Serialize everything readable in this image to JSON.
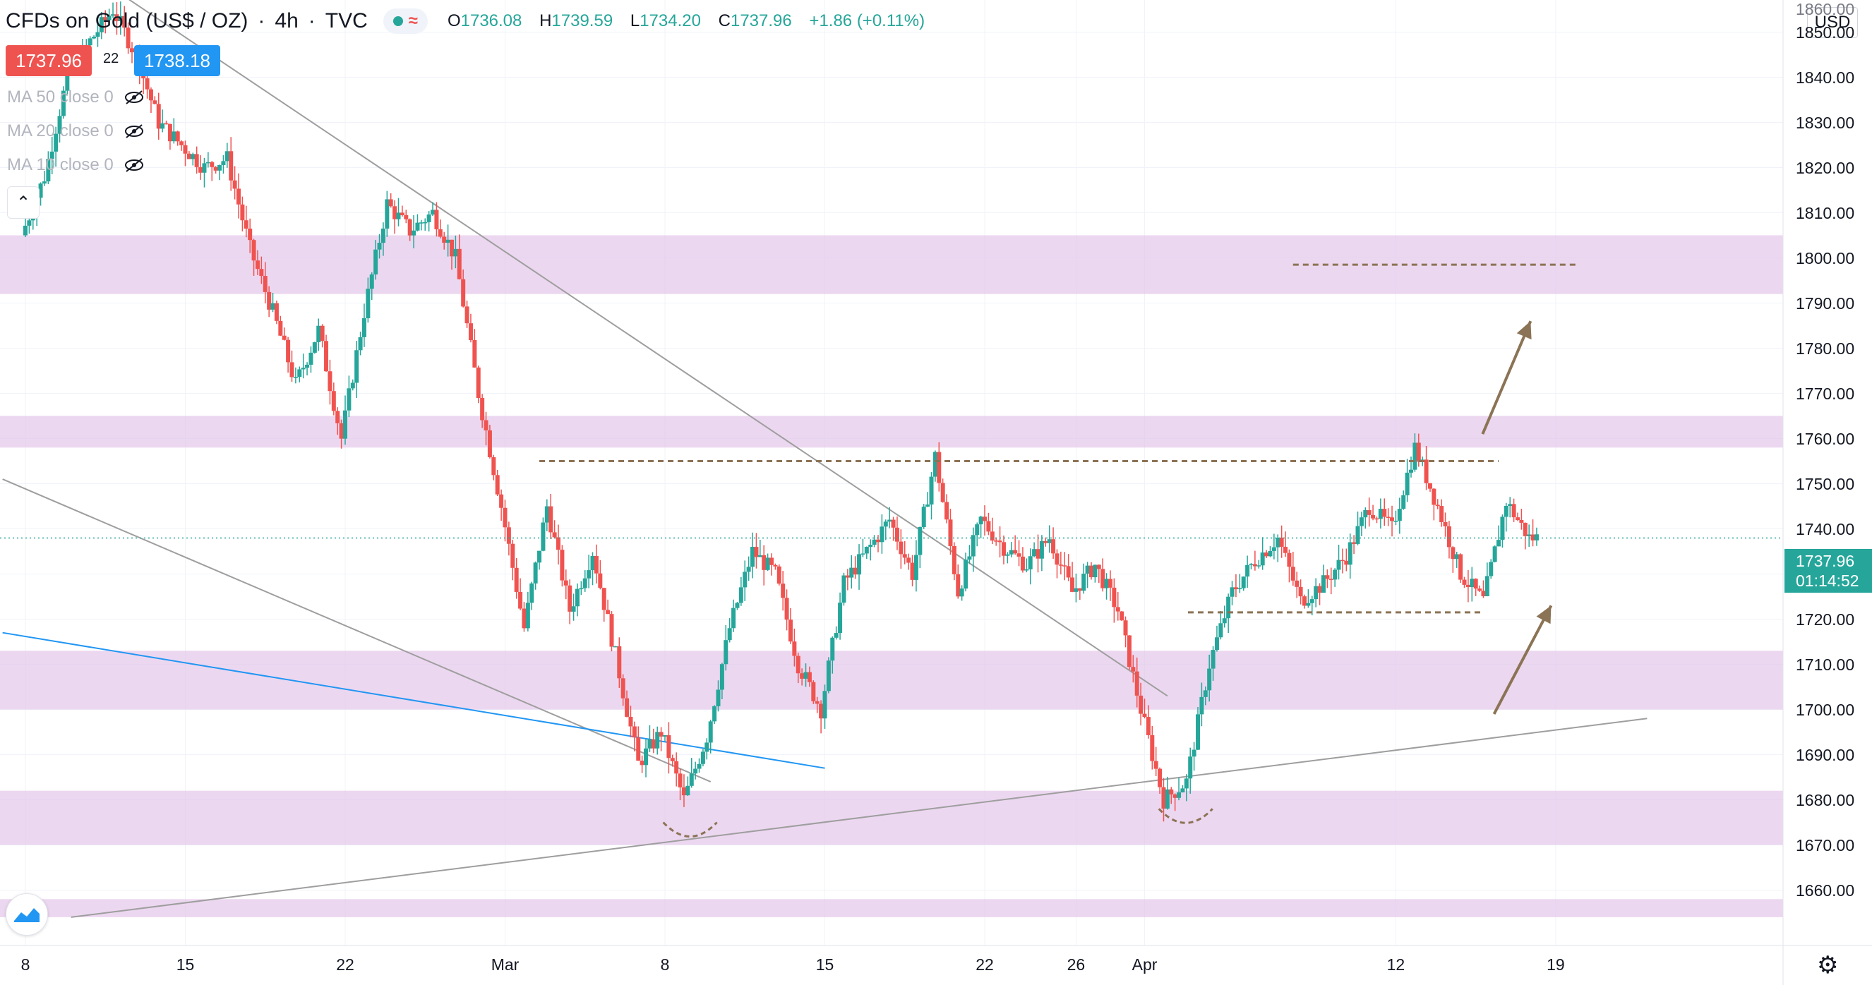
{
  "header": {
    "title": "CFDs on Gold (US$ / OZ)",
    "interval": "4h",
    "source": "TVC",
    "ohlc": {
      "o_label": "O",
      "o": "1736.08",
      "h_label": "H",
      "h": "1739.59",
      "l_label": "L",
      "l": "1734.20",
      "c_label": "C",
      "c": "1737.96",
      "change": "+1.86 (+0.11%)"
    }
  },
  "quote": {
    "sell": "1737.96",
    "spread": "22",
    "buy": "1738.18"
  },
  "indicators": [
    {
      "label": "MA 50 close 0"
    },
    {
      "label": "MA 20 close 0"
    },
    {
      "label": "MA 10 close 0"
    }
  ],
  "price_scale": {
    "currency": "USD",
    "last_price": "1737.96",
    "countdown": "01:14:52",
    "top_label": "1860.00"
  },
  "colors": {
    "up": "#26a69a",
    "down": "#ef5350",
    "zone": "#e1bee7",
    "trend_blue": "#2196f3",
    "trend_gray": "#9e9e9e",
    "annotation": "#8b7355"
  },
  "icons": [
    "chevron-up-icon",
    "eye-off-icon",
    "tradingview-logo-icon",
    "settings-gear-icon"
  ],
  "chart_data": {
    "type": "candlestick",
    "title": "CFDs on Gold (US$ / OZ)",
    "xlabel": "",
    "ylabel": "",
    "ylim": [
      1654,
      1862
    ],
    "y_ticks": [
      "1850.00",
      "1840.00",
      "1830.00",
      "1820.00",
      "1810.00",
      "1800.00",
      "1790.00",
      "1780.00",
      "1770.00",
      "1760.00",
      "1750.00",
      "1740.00",
      "1730.00",
      "1720.00",
      "1710.00",
      "1700.00",
      "1690.00",
      "1680.00",
      "1670.00",
      "1660.00"
    ],
    "x_ticks": [
      {
        "label": "8",
        "day": 0
      },
      {
        "label": "15",
        "day": 7
      },
      {
        "label": "22",
        "day": 14
      },
      {
        "label": "Mar",
        "day": 21
      },
      {
        "label": "8",
        "day": 28
      },
      {
        "label": "15",
        "day": 35
      },
      {
        "label": "22",
        "day": 42
      },
      {
        "label": "26",
        "day": 46
      },
      {
        "label": "Apr",
        "day": 49
      },
      {
        "label": "12",
        "day": 60
      },
      {
        "label": "19",
        "day": 67
      }
    ],
    "price_path": [
      [
        0,
        1805
      ],
      [
        1,
        1818
      ],
      [
        2,
        1840
      ],
      [
        3,
        1848
      ],
      [
        4,
        1855
      ],
      [
        5,
        1845
      ],
      [
        6,
        1830
      ],
      [
        7,
        1825
      ],
      [
        8,
        1820
      ],
      [
        9,
        1822
      ],
      [
        10,
        1802
      ],
      [
        11,
        1788
      ],
      [
        12,
        1772
      ],
      [
        13,
        1784
      ],
      [
        14,
        1760
      ],
      [
        15,
        1788
      ],
      [
        16,
        1812
      ],
      [
        17,
        1806
      ],
      [
        18,
        1810
      ],
      [
        19,
        1800
      ],
      [
        20,
        1770
      ],
      [
        21,
        1745
      ],
      [
        22,
        1718
      ],
      [
        23,
        1745
      ],
      [
        24,
        1722
      ],
      [
        25,
        1735
      ],
      [
        26,
        1712
      ],
      [
        27,
        1688
      ],
      [
        28,
        1695
      ],
      [
        29,
        1680
      ],
      [
        30,
        1694
      ],
      [
        31,
        1718
      ],
      [
        32,
        1735
      ],
      [
        33,
        1730
      ],
      [
        34,
        1710
      ],
      [
        35,
        1700
      ],
      [
        36,
        1728
      ],
      [
        37,
        1735
      ],
      [
        38,
        1742
      ],
      [
        39,
        1730
      ],
      [
        40,
        1756
      ],
      [
        41,
        1726
      ],
      [
        42,
        1742
      ],
      [
        43,
        1736
      ],
      [
        44,
        1732
      ],
      [
        45,
        1738
      ],
      [
        46,
        1726
      ],
      [
        47,
        1732
      ],
      [
        48,
        1722
      ],
      [
        49,
        1700
      ],
      [
        50,
        1680
      ],
      [
        51,
        1684
      ],
      [
        52,
        1710
      ],
      [
        53,
        1726
      ],
      [
        54,
        1733
      ],
      [
        55,
        1738
      ],
      [
        56,
        1724
      ],
      [
        57,
        1728
      ],
      [
        58,
        1734
      ],
      [
        59,
        1745
      ],
      [
        60,
        1740
      ],
      [
        61,
        1758
      ],
      [
        62,
        1745
      ],
      [
        63,
        1730
      ],
      [
        64,
        1724
      ],
      [
        65,
        1746
      ],
      [
        66,
        1738
      ]
    ],
    "zones": [
      [
        1792,
        1805
      ],
      [
        1758,
        1765
      ],
      [
        1700,
        1713
      ],
      [
        1670,
        1682
      ],
      [
        1654,
        1658
      ]
    ],
    "levels": [
      [
        1755,
        1755
      ],
      [
        1721.5,
        1721.5
      ],
      [
        1798.5,
        1798.5
      ]
    ],
    "trendlines": [
      {
        "color": "gray",
        "from": [
          -1,
          1876
        ],
        "to": [
          50,
          1703
        ]
      },
      {
        "color": "gray",
        "from": [
          -1,
          1751
        ],
        "to": [
          30,
          1684
        ]
      },
      {
        "color": "blue",
        "from": [
          -1,
          1717
        ],
        "to": [
          35,
          1687
        ]
      },
      {
        "color": "gray",
        "from": [
          2,
          1654
        ],
        "to": [
          71,
          1698
        ]
      }
    ],
    "last_price": 1737.96
  }
}
